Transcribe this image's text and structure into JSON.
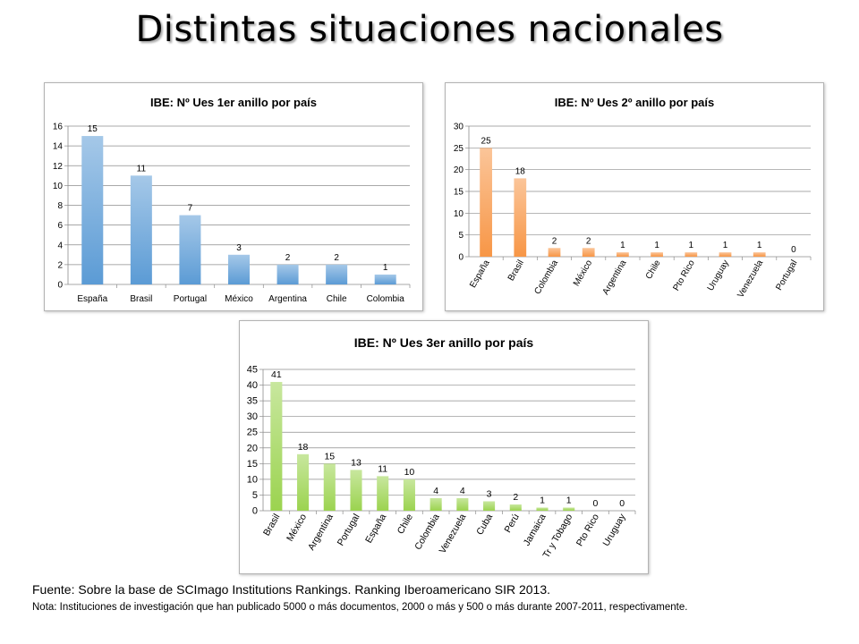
{
  "title": "Distintas situaciones nacionales",
  "footnote": {
    "source": "Fuente: Sobre la base de SCImago Institutions Rankings. Ranking Iberoamericano SIR 2013.",
    "note": "Nota: Instituciones de investigación que han publicado 5000 o más documentos, 2000 o más y 500 o más durante 2007-2011, respectivamente."
  },
  "colors": {
    "blue": "#5b9bd5",
    "orange": "#f79646",
    "green": "#9bd34f"
  },
  "chart_data": [
    {
      "type": "bar",
      "title": "IBE: Nº Ues 1er anillo por país",
      "categories": [
        "España",
        "Brasil",
        "Portugal",
        "México",
        "Argentina",
        "Chile",
        "Colombia"
      ],
      "values": [
        15,
        11,
        7,
        3,
        2,
        2,
        1
      ],
      "yticks": [
        0,
        2,
        4,
        6,
        8,
        10,
        12,
        14,
        16
      ],
      "ylim": [
        0,
        16
      ],
      "xlabel": "",
      "ylabel": "",
      "grid": true,
      "legend": "none",
      "data_labels": true,
      "bar_color": "blue",
      "rotated_labels": false
    },
    {
      "type": "bar",
      "title": "IBE: Nº Ues 2º anillo por país",
      "categories": [
        "España",
        "Brasil",
        "Colombia",
        "México",
        "Argentina",
        "Chile",
        "Pto Rico",
        "Uruguay",
        "Venezuela",
        "Portugal"
      ],
      "values": [
        25,
        18,
        2,
        2,
        1,
        1,
        1,
        1,
        1,
        0
      ],
      "yticks": [
        0,
        5,
        10,
        15,
        20,
        25,
        30
      ],
      "ylim": [
        0,
        30
      ],
      "xlabel": "",
      "ylabel": "",
      "grid": true,
      "legend": "none",
      "data_labels": true,
      "bar_color": "orange",
      "rotated_labels": true
    },
    {
      "type": "bar",
      "title": "IBE: Nº Ues 3er anillo por país",
      "categories": [
        "Brasil",
        "México",
        "Argentina",
        "Portugal",
        "España",
        "Chile",
        "Colombia",
        "Venezuela",
        "Cuba",
        "Perú",
        "Jamaica",
        "Tr y Tobago",
        "Pto Rico",
        "Uruguay"
      ],
      "values": [
        41,
        18,
        15,
        13,
        11,
        10,
        4,
        4,
        3,
        2,
        1,
        1,
        0,
        0
      ],
      "yticks": [
        0,
        5,
        10,
        15,
        20,
        25,
        30,
        35,
        40,
        45
      ],
      "ylim": [
        0,
        45
      ],
      "xlabel": "",
      "ylabel": "",
      "grid": true,
      "legend": "none",
      "data_labels": true,
      "bar_color": "green",
      "rotated_labels": true
    }
  ]
}
